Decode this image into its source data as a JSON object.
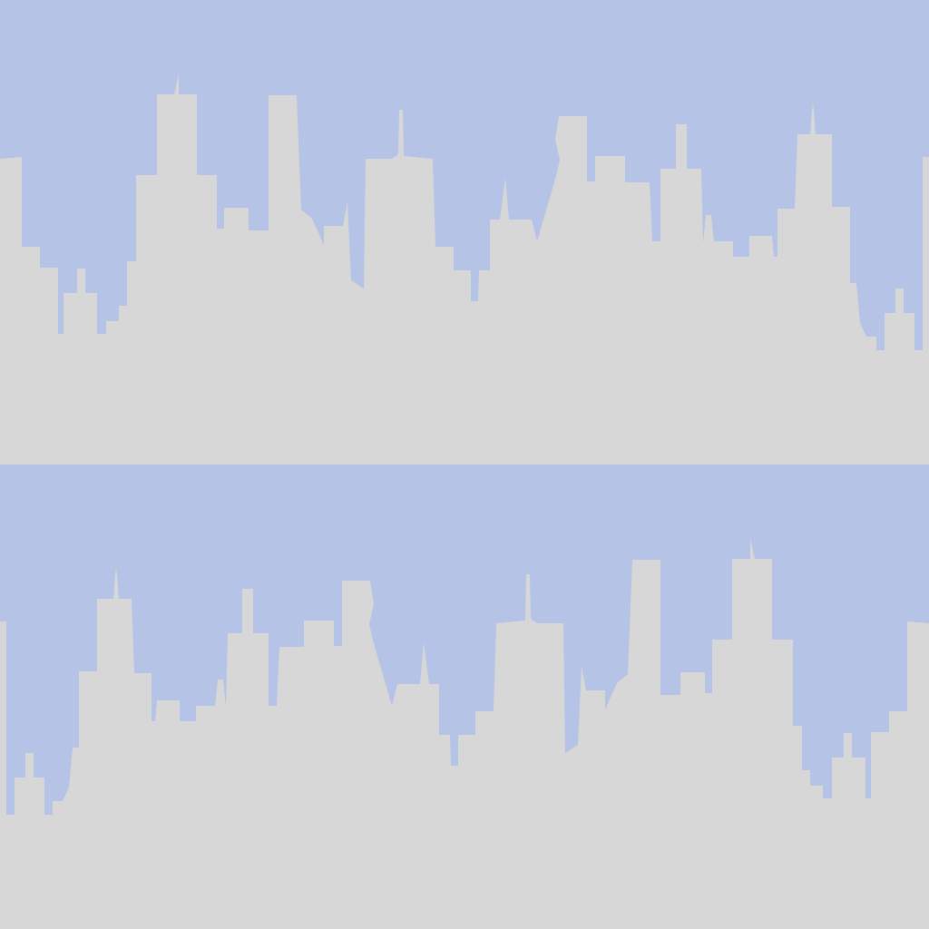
{
  "colors": {
    "sky": "#b4c3e6",
    "buildings": "#d7d7d7"
  },
  "tiles": [
    {
      "name": "skyline-tile-top",
      "mirrored": false
    },
    {
      "name": "skyline-tile-bottom",
      "mirrored": true
    }
  ]
}
